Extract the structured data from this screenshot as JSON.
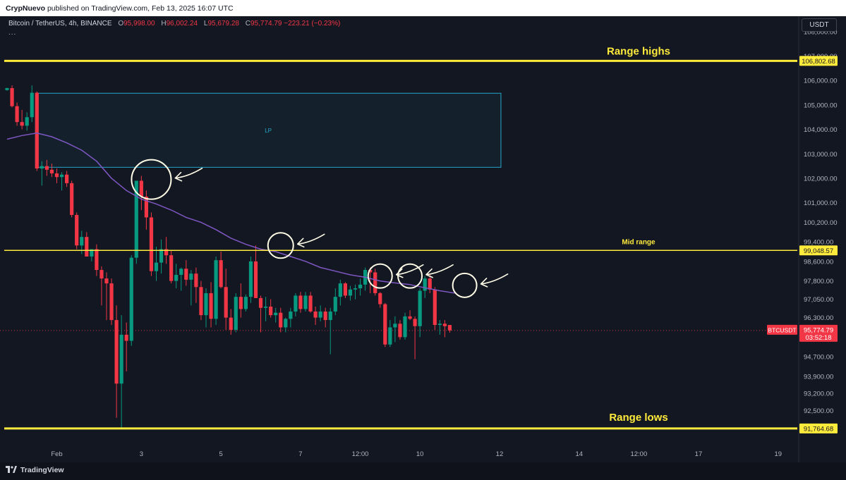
{
  "publication": {
    "author": "CrypNuevo",
    "text": "published on TradingView.com, Feb 13, 2025 16:07 UTC"
  },
  "legend": {
    "symbol": "Bitcoin / TetherUS, 4h, BINANCE",
    "open_label": "O",
    "open": "95,998.00",
    "high_label": "H",
    "high": "96,002.24",
    "low_label": "L",
    "low": "95,679.28",
    "close_label": "C",
    "close": "95,774.79",
    "change": "−223.21 (−0.23%)",
    "more": "..."
  },
  "currency": "USDT",
  "footer": {
    "brand": "TradingView"
  },
  "colors": {
    "background": "#131722",
    "up": "#089981",
    "down": "#f23645",
    "ma": "#7e57c2",
    "level": "#ffeb3b",
    "annotation": "#fffde7",
    "box": "#26a6c9"
  },
  "icons": {
    "brand": "tradingview-logo-icon"
  },
  "chart_data": {
    "type": "candlestick",
    "symbol": "BTCUSDT",
    "interval": "4h",
    "exchange": "BINANCE",
    "ylim": [
      91300,
      108400
    ],
    "yticks": [
      "108,000.00",
      "107,000.00",
      "106,000.00",
      "105,000.00",
      "104,000.00",
      "103,000.00",
      "102,000.00",
      "101,000.00",
      "100,200.00",
      "99,400.00",
      "98,600.00",
      "97,800.00",
      "97,050.00",
      "96,300.00",
      "95,500.00",
      "94,700.00",
      "93,900.00",
      "93,200.00",
      "92,500.00"
    ],
    "ytick_values": [
      108000,
      107000,
      106000,
      105000,
      104000,
      103000,
      102000,
      101000,
      100200,
      99400,
      98600,
      97800,
      97050,
      96300,
      95500,
      94700,
      93900,
      93200,
      92500
    ],
    "xticks": [
      {
        "label": "Feb",
        "bar": 10
      },
      {
        "label": "3",
        "bar": 27
      },
      {
        "label": "5",
        "bar": 43
      },
      {
        "label": "7",
        "bar": 59
      },
      {
        "label": "12:00",
        "bar": 71
      },
      {
        "label": "10",
        "bar": 83
      },
      {
        "label": "12",
        "bar": 99
      },
      {
        "label": "14",
        "bar": 115
      },
      {
        "label": "12:00",
        "bar": 127
      },
      {
        "label": "17",
        "bar": 139
      },
      {
        "label": "19",
        "bar": 155
      }
    ],
    "candles": [
      [
        105610,
        105700,
        105580,
        105690
      ],
      [
        105690,
        105800,
        104900,
        104950
      ],
      [
        104950,
        105100,
        104150,
        104300
      ],
      [
        104300,
        104800,
        104000,
        104150
      ],
      [
        104150,
        104700,
        103950,
        104500
      ],
      [
        104500,
        105800,
        104300,
        105500
      ],
      [
        105500,
        105550,
        102300,
        102400
      ],
      [
        102400,
        102700,
        101700,
        102500
      ],
      [
        102500,
        102750,
        102100,
        102350
      ],
      [
        102350,
        102600,
        102050,
        102200
      ],
      [
        102200,
        102400,
        101800,
        102050
      ],
      [
        102050,
        102250,
        101500,
        102150
      ],
      [
        102150,
        102300,
        101650,
        101800
      ],
      [
        101800,
        101900,
        100400,
        100500
      ],
      [
        100500,
        100600,
        99100,
        99250
      ],
      [
        99250,
        99850,
        98900,
        99600
      ],
      [
        99600,
        99800,
        98800,
        98800
      ],
      [
        98800,
        99050,
        98600,
        99100
      ],
      [
        99100,
        99300,
        98000,
        98250
      ],
      [
        98250,
        98400,
        96800,
        97900
      ],
      [
        97900,
        98150,
        96200,
        97700
      ],
      [
        97700,
        97900,
        96000,
        96200
      ],
      [
        96200,
        96800,
        92200,
        93600
      ],
      [
        93600,
        96400,
        91800,
        95600
      ],
      [
        95600,
        96100,
        94100,
        95350
      ],
      [
        95350,
        98850,
        95150,
        98750
      ],
      [
        98750,
        101900,
        98500,
        101900
      ],
      [
        101900,
        102100,
        100700,
        101250
      ],
      [
        101250,
        101500,
        99900,
        100400
      ],
      [
        100400,
        100600,
        98000,
        98200
      ],
      [
        98200,
        99200,
        97800,
        98550
      ],
      [
        98550,
        99500,
        98100,
        99100
      ],
      [
        99100,
        99600,
        98500,
        98850
      ],
      [
        98850,
        99050,
        97700,
        97800
      ],
      [
        97800,
        98500,
        97500,
        98050
      ],
      [
        98050,
        98350,
        97400,
        98300
      ],
      [
        98300,
        98650,
        97600,
        97850
      ],
      [
        97850,
        98250,
        96800,
        98100
      ],
      [
        98100,
        98350,
        96900,
        97550
      ],
      [
        97550,
        97800,
        96200,
        96400
      ],
      [
        96400,
        97500,
        95900,
        97300
      ],
      [
        97300,
        97750,
        95900,
        96250
      ],
      [
        96250,
        98800,
        96000,
        98650
      ],
      [
        98650,
        99000,
        97500,
        97550
      ],
      [
        97550,
        98300,
        95800,
        96300
      ],
      [
        96300,
        96650,
        95600,
        95800
      ],
      [
        95800,
        97300,
        95700,
        97150
      ],
      [
        97150,
        97700,
        96300,
        96650
      ],
      [
        96650,
        97250,
        96550,
        97150
      ],
      [
        97150,
        98800,
        96900,
        98600
      ],
      [
        98600,
        99250,
        97100,
        97100
      ],
      [
        97100,
        97200,
        95700,
        96700
      ],
      [
        96700,
        97150,
        96150,
        96750
      ],
      [
        96750,
        97050,
        96300,
        96400
      ],
      [
        96400,
        96700,
        96100,
        96500
      ],
      [
        96500,
        96700,
        95700,
        95900
      ],
      [
        95900,
        96300,
        95700,
        96250
      ],
      [
        96250,
        96700,
        95900,
        96550
      ],
      [
        96550,
        97300,
        96350,
        97200
      ],
      [
        97200,
        97350,
        96500,
        96650
      ],
      [
        96650,
        97350,
        96550,
        97200
      ],
      [
        97200,
        97350,
        96500,
        96550
      ],
      [
        96550,
        96750,
        96000,
        96300
      ],
      [
        96300,
        96800,
        96150,
        96550
      ],
      [
        96550,
        96700,
        95900,
        96200
      ],
      [
        96200,
        96700,
        94800,
        96550
      ],
      [
        96550,
        97500,
        96400,
        97150
      ],
      [
        97150,
        97850,
        96800,
        97700
      ],
      [
        97700,
        97750,
        97100,
        97200
      ],
      [
        97200,
        97600,
        97000,
        97450
      ],
      [
        97450,
        97650,
        97050,
        97500
      ],
      [
        97500,
        97900,
        97200,
        97650
      ],
      [
        97650,
        98350,
        97400,
        98250
      ],
      [
        98250,
        98350,
        97300,
        98150
      ],
      [
        98150,
        98300,
        97200,
        97300
      ],
      [
        97300,
        97350,
        96700,
        96850
      ],
      [
        96850,
        96900,
        95100,
        95200
      ],
      [
        95200,
        96200,
        95100,
        95900
      ],
      [
        95900,
        96350,
        95300,
        96050
      ],
      [
        96050,
        96200,
        95400,
        95500
      ],
      [
        95500,
        96500,
        95400,
        96350
      ],
      [
        96350,
        96600,
        96200,
        96250
      ],
      [
        96250,
        96350,
        94600,
        95950
      ],
      [
        95950,
        97500,
        95500,
        97400
      ],
      [
        97400,
        98000,
        97100,
        97900
      ],
      [
        97900,
        98100,
        97300,
        97450
      ],
      [
        97450,
        97550,
        95800,
        96000
      ],
      [
        96000,
        96200,
        95600,
        96050
      ],
      [
        96050,
        96200,
        95500,
        95950
      ],
      [
        95998,
        96002,
        95679,
        95775
      ]
    ],
    "moving_average": [
      [
        0,
        103600
      ],
      [
        3,
        103750
      ],
      [
        6,
        103850
      ],
      [
        9,
        103700
      ],
      [
        12,
        103450
      ],
      [
        15,
        103150
      ],
      [
        18,
        102700
      ],
      [
        21,
        102000
      ],
      [
        24,
        101500
      ],
      [
        27,
        101150
      ],
      [
        30,
        100950
      ],
      [
        33,
        100700
      ],
      [
        36,
        100400
      ],
      [
        39,
        100200
      ],
      [
        42,
        99900
      ],
      [
        45,
        99550
      ],
      [
        48,
        99300
      ],
      [
        51,
        99100
      ],
      [
        54,
        99000
      ],
      [
        57,
        98800
      ],
      [
        60,
        98600
      ],
      [
        63,
        98350
      ],
      [
        66,
        98200
      ],
      [
        69,
        98050
      ],
      [
        72,
        97950
      ],
      [
        75,
        97800
      ],
      [
        78,
        97720
      ],
      [
        81,
        97650
      ],
      [
        84,
        97520
      ],
      [
        87,
        97400
      ],
      [
        90,
        97300
      ]
    ],
    "levels": [
      {
        "label": "Range highs",
        "value": 106802.68,
        "price_label": "106,802.68",
        "width": 3
      },
      {
        "label": "Mid range",
        "value": 99048.57,
        "price_label": "99,048.57",
        "width": 1.5
      },
      {
        "label": "Range lows",
        "value": 91764.68,
        "price_label": "91,764.68",
        "width": 3
      }
    ],
    "lp_box": {
      "label": "LP",
      "x_start": 6,
      "x_end": 99,
      "y_top": 105480,
      "y_bottom": 102450
    },
    "last_price": {
      "symbol_label": "BTCUSDT",
      "price_label": "95,774.79",
      "countdown": "03:52:18",
      "value": 95774.79
    },
    "annotations": [
      {
        "type": "circle-arrow",
        "bar": 29,
        "value": 101950
      },
      {
        "type": "circle-arrow",
        "bar": 55,
        "value": 99250
      },
      {
        "type": "circle-arrow",
        "bar": 75,
        "value": 98000
      },
      {
        "type": "circle-arrow",
        "bar": 81,
        "value": 98000
      },
      {
        "type": "circle-arrow",
        "bar": 92,
        "value": 97620
      }
    ]
  }
}
